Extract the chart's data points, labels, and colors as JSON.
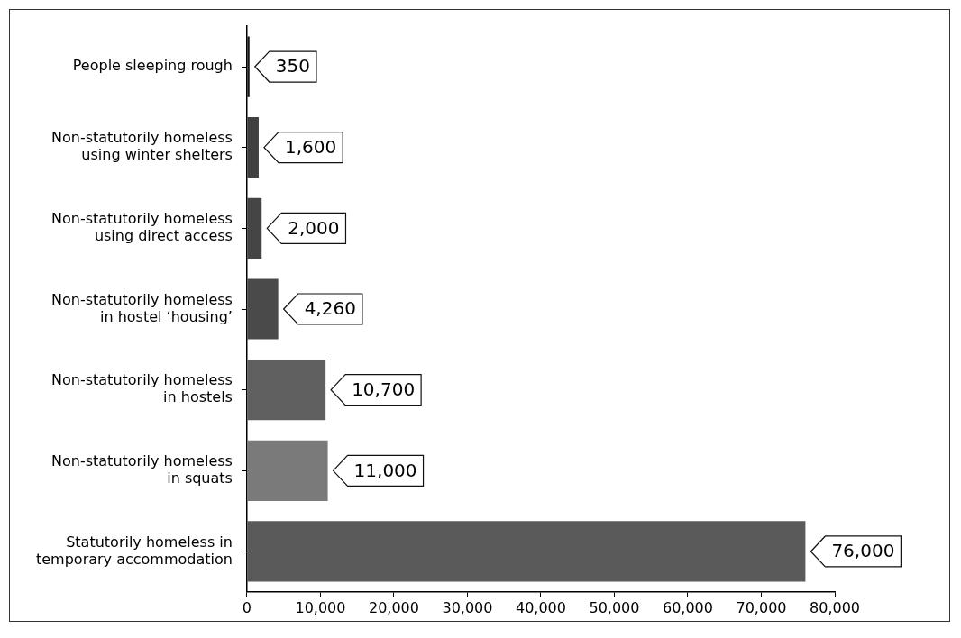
{
  "chart_data": {
    "type": "bar",
    "orientation": "horizontal",
    "categories": [
      "People sleeping rough",
      "Non-statutorily homeless\nusing winter shelters",
      "Non-statutorily homeless\nusing direct access",
      "Non-statutorily homeless\nin hostel ‘housing’",
      "Non-statutorily homeless\nin hostels",
      "Non-statutorily homeless\nin squats",
      "Statutorily homeless in\ntemporary accommodation"
    ],
    "values": [
      350,
      1600,
      2000,
      4260,
      10700,
      11000,
      76000
    ],
    "colors": [
      "#1a1a1a",
      "#404040",
      "#454545",
      "#4a4a4a",
      "#606060",
      "#7a7a7a",
      "#5a5a5a"
    ],
    "xlim": [
      0,
      80000
    ],
    "xticks": [
      {
        "value": 0,
        "label": "0"
      },
      {
        "value": 10000,
        "label": "10,000"
      },
      {
        "value": 20000,
        "label": "20,000"
      },
      {
        "value": 30000,
        "label": "30,000"
      },
      {
        "value": 40000,
        "label": "40,000"
      },
      {
        "value": 50000,
        "label": "50,000"
      },
      {
        "value": 60000,
        "label": "60,000"
      },
      {
        "value": 70000,
        "label": "70,000"
      },
      {
        "value": 80000,
        "label": "80,000"
      }
    ],
    "value_labels": [
      "350",
      "1,600",
      "2,000",
      "4,260",
      "10,700",
      "11,000",
      "76,000"
    ],
    "grid": false,
    "legend": false
  }
}
